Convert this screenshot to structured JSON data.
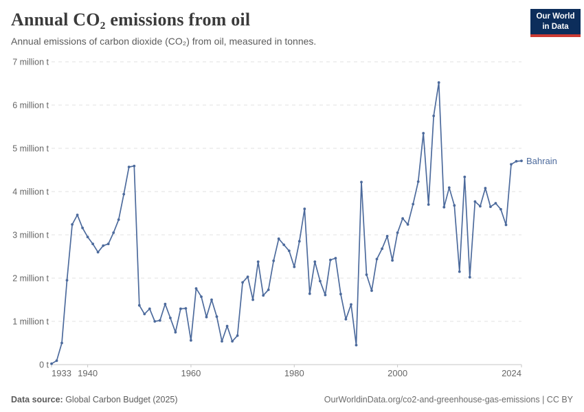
{
  "header": {
    "title": "Annual CO₂ emissions from oil",
    "subtitle": "Annual emissions of carbon dioxide (CO₂) from oil, measured in tonnes."
  },
  "logo": {
    "line1": "Our World",
    "line2": "in Data",
    "bg_color": "#0c2d5b",
    "accent_color": "#cc3b33"
  },
  "chart_data": {
    "type": "line",
    "title": "Annual CO₂ emissions from oil",
    "entity": "Bahrain",
    "unit": "million t",
    "xlim": [
      1933,
      2024
    ],
    "ylim": [
      0,
      7
    ],
    "grid": true,
    "legend_position": "end-of-line",
    "line_color": "#4C6A9C",
    "grid_color": "#e2e2e2",
    "axis_color": "#c6c6c6",
    "tick_label_color": "#666666",
    "yticks": [
      0,
      1,
      2,
      3,
      4,
      5,
      6,
      7
    ],
    "ytick_labels": [
      "0 t",
      "1 million t",
      "2 million t",
      "3 million t",
      "4 million t",
      "5 million t",
      "6 million t",
      "7 million t"
    ],
    "xticks": [
      1933,
      1940,
      1960,
      1980,
      2000,
      2024
    ],
    "x": [
      1933,
      1934,
      1935,
      1936,
      1937,
      1938,
      1939,
      1940,
      1941,
      1942,
      1943,
      1944,
      1945,
      1946,
      1947,
      1948,
      1949,
      1950,
      1951,
      1952,
      1953,
      1954,
      1955,
      1956,
      1957,
      1958,
      1959,
      1960,
      1961,
      1962,
      1963,
      1964,
      1965,
      1966,
      1967,
      1968,
      1969,
      1970,
      1971,
      1972,
      1973,
      1974,
      1975,
      1976,
      1977,
      1978,
      1979,
      1980,
      1981,
      1982,
      1983,
      1984,
      1985,
      1986,
      1987,
      1988,
      1989,
      1990,
      1991,
      1992,
      1993,
      1994,
      1995,
      1996,
      1997,
      1998,
      1999,
      2000,
      2001,
      2002,
      2003,
      2004,
      2005,
      2006,
      2007,
      2008,
      2009,
      2010,
      2011,
      2012,
      2013,
      2014,
      2015,
      2016,
      2017,
      2018,
      2019,
      2020,
      2021,
      2022,
      2023,
      2024
    ],
    "values": [
      0.02,
      0.09,
      0.5,
      1.95,
      3.24,
      3.46,
      3.16,
      2.95,
      2.79,
      2.6,
      2.75,
      2.79,
      3.05,
      3.35,
      3.94,
      4.57,
      4.59,
      1.37,
      1.17,
      1.29,
      1.0,
      1.02,
      1.4,
      1.08,
      0.75,
      1.29,
      1.3,
      0.56,
      1.76,
      1.57,
      1.1,
      1.5,
      1.11,
      0.54,
      0.89,
      0.54,
      0.67,
      1.9,
      2.03,
      1.5,
      2.38,
      1.6,
      1.73,
      2.4,
      2.91,
      2.77,
      2.63,
      2.26,
      2.85,
      3.6,
      1.64,
      2.38,
      1.93,
      1.61,
      2.42,
      2.46,
      1.63,
      1.05,
      1.39,
      0.45,
      4.22,
      2.08,
      1.71,
      2.44,
      2.68,
      2.97,
      2.41,
      3.05,
      3.38,
      3.24,
      3.71,
      4.23,
      5.35,
      3.7,
      5.75,
      6.52,
      3.64,
      4.09,
      3.68,
      2.15,
      4.34,
      2.02,
      3.77,
      3.66,
      4.08,
      3.65,
      3.73,
      3.59,
      3.23,
      4.63,
      4.7,
      4.71
    ]
  },
  "footer": {
    "source_label": "Data source:",
    "source_text": " Global Carbon Budget (2025)",
    "credit": "OurWorldinData.org/co2-and-greenhouse-gas-emissions | CC BY"
  }
}
